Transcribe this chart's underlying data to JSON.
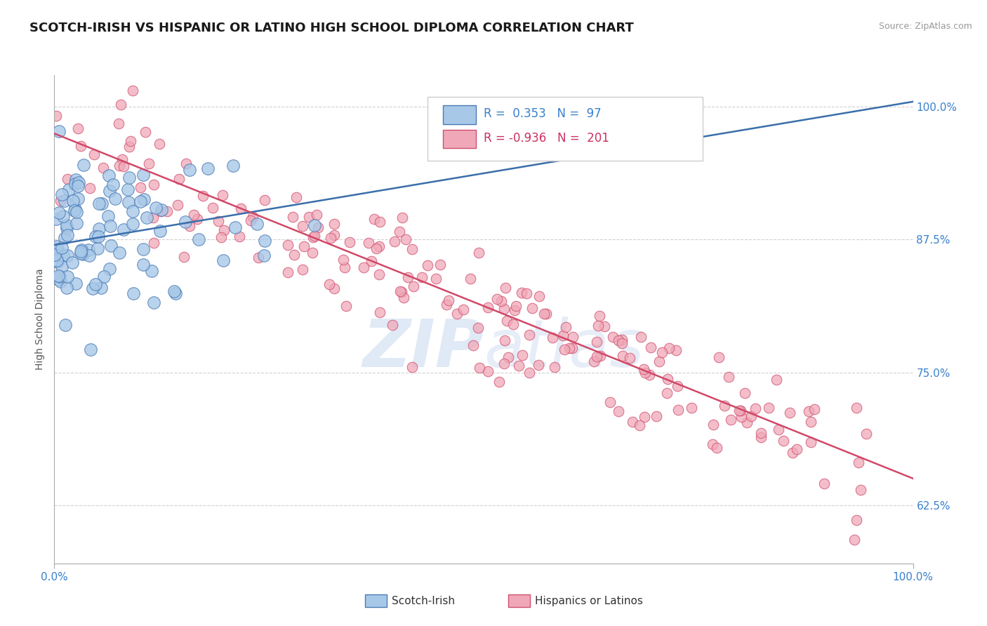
{
  "title": "SCOTCH-IRISH VS HISPANIC OR LATINO HIGH SCHOOL DIPLOMA CORRELATION CHART",
  "source_text": "Source: ZipAtlas.com",
  "ylabel": "High School Diploma",
  "watermark_zip": "ZIP",
  "watermark_atlas": "atlas",
  "xlim": [
    0.0,
    100.0
  ],
  "ylim": [
    57.0,
    103.0
  ],
  "yticks": [
    62.5,
    75.0,
    87.5,
    100.0
  ],
  "ytick_labels": [
    "62.5%",
    "75.0%",
    "87.5%",
    "100.0%"
  ],
  "xtick_labels": [
    "0.0%",
    "100.0%"
  ],
  "blue_fill": "#a8c8e8",
  "blue_edge": "#4a7ab5",
  "pink_fill": "#f0a8b8",
  "pink_edge": "#d05070",
  "blue_line_color": "#3a6eaa",
  "pink_line_color": "#d04868",
  "legend_blue_label": "Scotch-Irish",
  "legend_pink_label": "Hispanics or Latinos",
  "R_blue": 0.353,
  "N_blue": 97,
  "R_pink": -0.936,
  "N_pink": 201,
  "blue_text_color": "#3a80cc",
  "pink_text_color": "#cc3060",
  "grid_color": "#cccccc",
  "background_color": "#ffffff",
  "title_fontsize": 13,
  "tick_fontsize": 11,
  "legend_fontsize": 11,
  "blue_line_x0": 0.0,
  "blue_line_x1": 100.0,
  "blue_line_y0": 87.0,
  "blue_line_y1": 100.5,
  "pink_line_x0": 0.0,
  "pink_line_x1": 100.0,
  "pink_line_y0": 97.5,
  "pink_line_y1": 65.0
}
